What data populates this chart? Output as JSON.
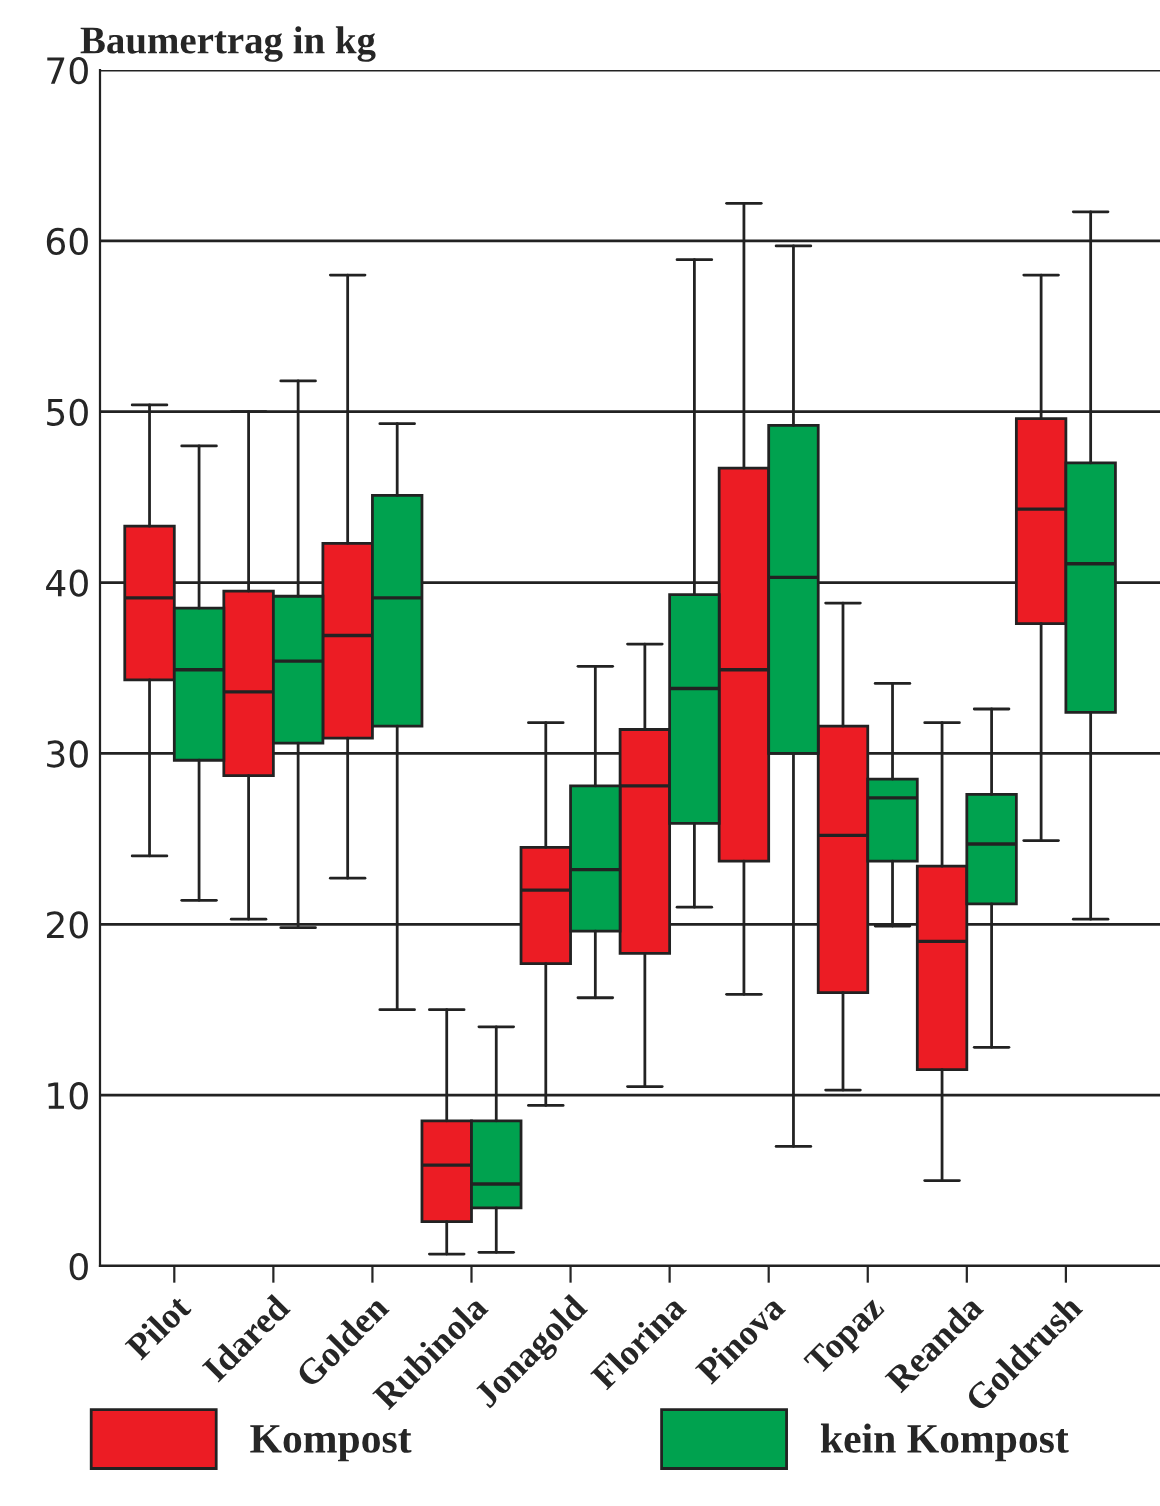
{
  "chart_data": {
    "type": "box",
    "ylabel": "Baumertrag in kg",
    "categories": [
      "Pilot",
      "Idared",
      "Golden",
      "Rubinola",
      "Jonagold",
      "Florina",
      "Pinova",
      "Topaz",
      "Reanda",
      "Goldrush"
    ],
    "ylim": [
      0,
      70
    ],
    "yticks": [
      0,
      10,
      20,
      30,
      40,
      50,
      60,
      70
    ],
    "grid": "y",
    "legend": "bottom",
    "series": [
      {
        "name": "Kompost",
        "color": "#ec1c24",
        "boxes": [
          {
            "low": 24.0,
            "q1": 34.3,
            "median": 39.1,
            "q3": 43.3,
            "high": 50.4
          },
          {
            "low": 20.3,
            "q1": 28.7,
            "median": 33.6,
            "q3": 39.5,
            "high": 50.0
          },
          {
            "low": 22.7,
            "q1": 30.9,
            "median": 36.9,
            "q3": 42.3,
            "high": 58.0
          },
          {
            "low": 0.7,
            "q1": 2.6,
            "median": 5.9,
            "q3": 8.5,
            "high": 15.0
          },
          {
            "low": 9.4,
            "q1": 17.7,
            "median": 22.0,
            "q3": 24.5,
            "high": 31.8
          },
          {
            "low": 10.5,
            "q1": 18.3,
            "median": 28.1,
            "q3": 31.4,
            "high": 36.4
          },
          {
            "low": 15.9,
            "q1": 23.7,
            "median": 34.9,
            "q3": 46.7,
            "high": 62.2
          },
          {
            "low": 10.3,
            "q1": 16.0,
            "median": 25.2,
            "q3": 31.6,
            "high": 38.8
          },
          {
            "low": 5.0,
            "q1": 11.5,
            "median": 19.0,
            "q3": 23.4,
            "high": 31.8
          },
          {
            "low": 24.9,
            "q1": 37.6,
            "median": 44.3,
            "q3": 49.6,
            "high": 58.0
          }
        ]
      },
      {
        "name": "kein Kompost",
        "color": "#00a24f",
        "boxes": [
          {
            "low": 21.4,
            "q1": 29.6,
            "median": 34.9,
            "q3": 38.5,
            "high": 48.0
          },
          {
            "low": 19.8,
            "q1": 30.6,
            "median": 35.4,
            "q3": 39.2,
            "high": 51.8
          },
          {
            "low": 15.0,
            "q1": 31.6,
            "median": 39.1,
            "q3": 45.1,
            "high": 49.3
          },
          {
            "low": 0.8,
            "q1": 3.4,
            "median": 4.8,
            "q3": 8.5,
            "high": 14.0
          },
          {
            "low": 15.7,
            "q1": 19.6,
            "median": 23.2,
            "q3": 28.1,
            "high": 35.1
          },
          {
            "low": 21.0,
            "q1": 25.9,
            "median": 33.8,
            "q3": 39.3,
            "high": 58.9
          },
          {
            "low": 7.0,
            "q1": 30.0,
            "median": 40.3,
            "q3": 49.2,
            "high": 59.7
          },
          {
            "low": 19.9,
            "q1": 23.7,
            "median": 27.4,
            "q3": 28.5,
            "high": 34.1
          },
          {
            "low": 12.8,
            "q1": 21.2,
            "median": 24.7,
            "q3": 27.6,
            "high": 32.6
          },
          {
            "low": 20.3,
            "q1": 32.4,
            "median": 41.1,
            "q3": 47.0,
            "high": 61.7
          }
        ]
      }
    ]
  }
}
